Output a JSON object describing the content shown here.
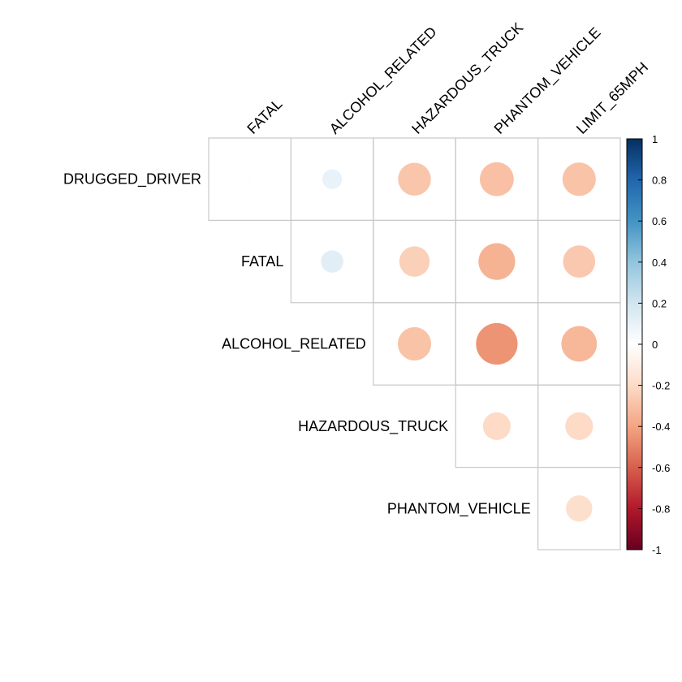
{
  "chart_data": {
    "type": "heatmap",
    "style": "correlation-circle-upper",
    "columns": [
      "FATAL",
      "ALCOHOL_RELATED",
      "HAZARDOUS_TRUCK",
      "PHANTOM_VEHICLE",
      "LIMIT_65MPH"
    ],
    "rows": [
      "DRUGGED_DRIVER",
      "FATAL",
      "ALCOHOL_RELATED",
      "HAZARDOUS_TRUCK",
      "PHANTOM_VEHICLE"
    ],
    "values": [
      [
        0.01,
        0.1,
        -0.28,
        -0.3,
        -0.29
      ],
      [
        null,
        0.13,
        -0.24,
        -0.35,
        -0.27
      ],
      [
        null,
        null,
        -0.29,
        -0.45,
        -0.33
      ],
      [
        null,
        null,
        null,
        -0.2,
        -0.2
      ],
      [
        null,
        null,
        null,
        null,
        -0.18
      ]
    ],
    "colorbar": {
      "range": [
        -1,
        1
      ],
      "ticks": [
        "1",
        "0.8",
        "0.6",
        "0.4",
        "0.2",
        "0",
        "-0.2",
        "-0.4",
        "-0.6",
        "-0.8",
        "-1"
      ],
      "colors": [
        "#67001F",
        "#B2182B",
        "#D6604D",
        "#F4A582",
        "#FDDBC7",
        "#FFFFFF",
        "#D1E5F0",
        "#92C5DE",
        "#4393C3",
        "#2166AC",
        "#053061"
      ]
    },
    "grid": true,
    "legend_position": "right"
  }
}
